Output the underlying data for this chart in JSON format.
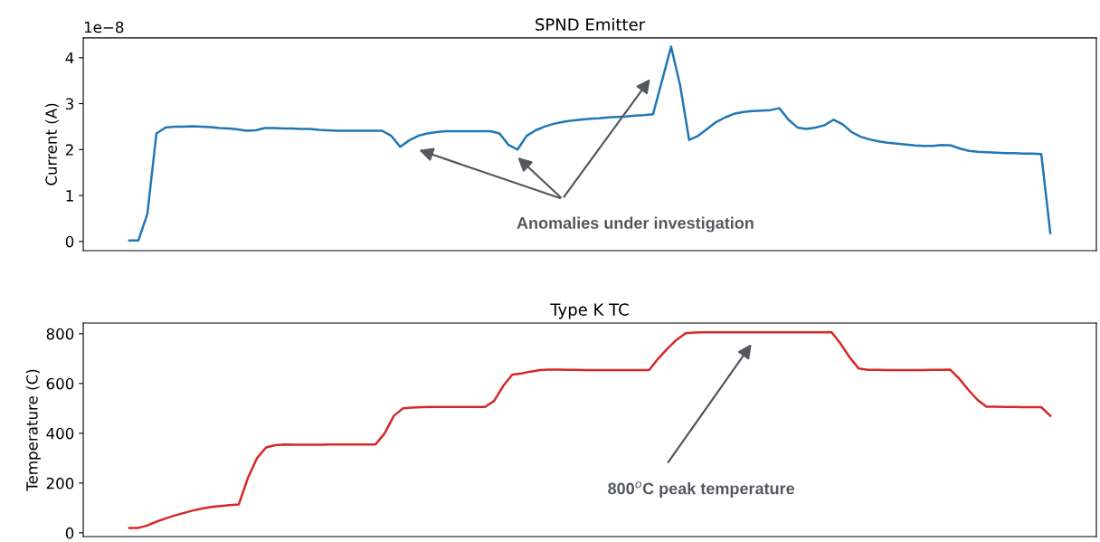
{
  "chart_data": [
    {
      "type": "line",
      "title": "SPND Emitter",
      "ylabel": "Current (A)",
      "categories": [
        null,
        null,
        null,
        null,
        null,
        null,
        null,
        null,
        null,
        null,
        null,
        null,
        null,
        null,
        null,
        null,
        null,
        null,
        null,
        null,
        null,
        null,
        null,
        null,
        null,
        null,
        null,
        null,
        null,
        null,
        null,
        null,
        null,
        null,
        null,
        null,
        null,
        null,
        null,
        null,
        null,
        null,
        null,
        null,
        null,
        null,
        null,
        null,
        null,
        null,
        null,
        null,
        null,
        null,
        null,
        null,
        null,
        null,
        null,
        null,
        null,
        null,
        null,
        null,
        null,
        null,
        null,
        null,
        null,
        null,
        null,
        null,
        null,
        null,
        null,
        null,
        null,
        null,
        null,
        null,
        null,
        null,
        null,
        null,
        null,
        null,
        null,
        null,
        null,
        null,
        null,
        null,
        null,
        null,
        null,
        null,
        null,
        null,
        null,
        null,
        null,
        null,
        null
      ],
      "series": [
        {
          "color": "#1f77b4",
          "values": [
            0.02,
            0.02,
            0.6,
            2.35,
            2.48,
            2.5,
            2.5,
            2.51,
            2.5,
            2.49,
            2.47,
            2.46,
            2.44,
            2.41,
            2.42,
            2.47,
            2.47,
            2.46,
            2.46,
            2.45,
            2.45,
            2.43,
            2.42,
            2.41,
            2.41,
            2.41,
            2.41,
            2.41,
            2.41,
            2.3,
            2.06,
            2.2,
            2.3,
            2.35,
            2.38,
            2.4,
            2.4,
            2.4,
            2.4,
            2.4,
            2.4,
            2.35,
            2.1,
            2.0,
            2.3,
            2.42,
            2.5,
            2.56,
            2.6,
            2.63,
            2.65,
            2.67,
            2.68,
            2.7,
            2.71,
            2.72,
            2.74,
            2.75,
            2.77,
            3.5,
            4.24,
            3.4,
            2.21,
            2.3,
            2.45,
            2.6,
            2.7,
            2.78,
            2.82,
            2.84,
            2.85,
            2.86,
            2.9,
            2.65,
            2.48,
            2.45,
            2.48,
            2.53,
            2.65,
            2.55,
            2.38,
            2.28,
            2.22,
            2.18,
            2.15,
            2.13,
            2.11,
            2.09,
            2.08,
            2.08,
            2.1,
            2.09,
            2.02,
            1.97,
            1.95,
            1.94,
            1.93,
            1.92,
            1.92,
            1.91,
            1.91,
            1.9,
            0.18
          ]
        }
      ],
      "ylim": [
        -0.2,
        4.43
      ],
      "yticks": [
        0,
        1,
        2,
        3,
        4
      ],
      "tick_labels": "y",
      "grid": false,
      "legend": false,
      "annotations": [
        "1e−8",
        "Anomalies under investigation"
      ]
    },
    {
      "type": "line",
      "title": "Type K TC",
      "ylabel": "Temperature (C)",
      "categories": [
        null,
        null,
        null,
        null,
        null,
        null,
        null,
        null,
        null,
        null,
        null,
        null,
        null,
        null,
        null,
        null,
        null,
        null,
        null,
        null,
        null,
        null,
        null,
        null,
        null,
        null,
        null,
        null,
        null,
        null,
        null,
        null,
        null,
        null,
        null,
        null,
        null,
        null,
        null,
        null,
        null,
        null,
        null,
        null,
        null,
        null,
        null,
        null,
        null,
        null,
        null,
        null,
        null,
        null,
        null,
        null,
        null,
        null,
        null,
        null,
        null,
        null,
        null,
        null,
        null,
        null,
        null,
        null,
        null,
        null,
        null,
        null,
        null,
        null,
        null,
        null,
        null,
        null,
        null,
        null,
        null,
        null,
        null,
        null,
        null,
        null,
        null,
        null,
        null,
        null,
        null,
        null,
        null,
        null,
        null,
        null,
        null,
        null,
        null,
        null,
        null,
        null,
        null
      ],
      "series": [
        {
          "color": "#d62728",
          "values": [
            null,
            20,
            20,
            30,
            45,
            58,
            70,
            80,
            90,
            98,
            104,
            108,
            111,
            114,
            220,
            300,
            343,
            352,
            355,
            354,
            354,
            354,
            354,
            355,
            355,
            355,
            355,
            355,
            355,
            400,
            470,
            500,
            503,
            505,
            506,
            506,
            506,
            506,
            506,
            506,
            506,
            530,
            590,
            636,
            640,
            648,
            654,
            656,
            656,
            655,
            655,
            654,
            654,
            654,
            654,
            654,
            654,
            654,
            654,
            700,
            740,
            775,
            802,
            805,
            806,
            806,
            806,
            806,
            806,
            806,
            806,
            806,
            806,
            806,
            806,
            806,
            806,
            806,
            807,
            760,
            705,
            660,
            655,
            655,
            654,
            654,
            654,
            654,
            654,
            655,
            655,
            656,
            620,
            575,
            535,
            507,
            507,
            506,
            506,
            505,
            505,
            505,
            470
          ]
        }
      ],
      "ylim": [
        -15,
        843
      ],
      "yticks": [
        0,
        200,
        400,
        600,
        800
      ],
      "tick_labels": "y",
      "grid": false,
      "legend": false,
      "annotations": [
        "800$^{o}$C peak temperature"
      ]
    }
  ]
}
